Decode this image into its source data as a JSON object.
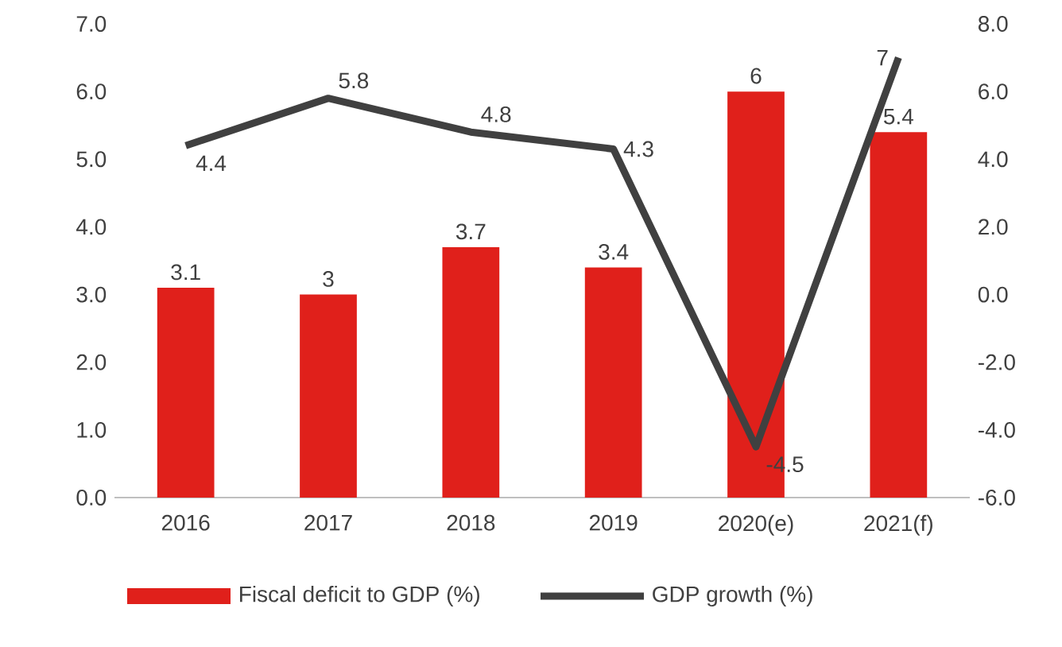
{
  "chart_data": {
    "type": "bar",
    "categories": [
      "2016",
      "2017",
      "2018",
      "2019",
      "2020(e)",
      "2021(f)"
    ],
    "series": [
      {
        "name": "Fiscal deficit to GDP (%)",
        "color": "#e0201b",
        "values": [
          3.1,
          3.0,
          3.7,
          3.4,
          6.0,
          5.4
        ],
        "value_labels": [
          "3.1",
          "3",
          "3.7",
          "3.4",
          "6",
          "5.4"
        ]
      },
      {
        "name": "GDP growth (%)",
        "type": "line",
        "axis": "y2",
        "color": "#404040",
        "values": [
          4.4,
          5.8,
          4.8,
          4.3,
          -4.5,
          7.0
        ],
        "value_labels": [
          "4.4",
          "5.8",
          "4.8",
          "4.3",
          "-4.5",
          "7"
        ]
      }
    ],
    "ylim": [
      0,
      7
    ],
    "yticks": [
      {
        "value": 0,
        "label": "0.0"
      },
      {
        "value": 1,
        "label": "1.0"
      },
      {
        "value": 2,
        "label": "2.0"
      },
      {
        "value": 3,
        "label": "3.0"
      },
      {
        "value": 4,
        "label": "4.0"
      },
      {
        "value": 5,
        "label": "5.0"
      },
      {
        "value": 6,
        "label": "6.0"
      },
      {
        "value": 7,
        "label": "7.0"
      }
    ],
    "y2lim": [
      -6,
      8
    ],
    "y2ticks": [
      {
        "value": -6,
        "label": "-6.0"
      },
      {
        "value": -4,
        "label": "-4.0"
      },
      {
        "value": -2,
        "label": "-2.0"
      },
      {
        "value": 0,
        "label": "0.0"
      },
      {
        "value": 2,
        "label": "2.0"
      },
      {
        "value": 4,
        "label": "4.0"
      },
      {
        "value": 6,
        "label": "6.0"
      },
      {
        "value": 8,
        "label": "8.0"
      }
    ],
    "legend": "bottom"
  }
}
